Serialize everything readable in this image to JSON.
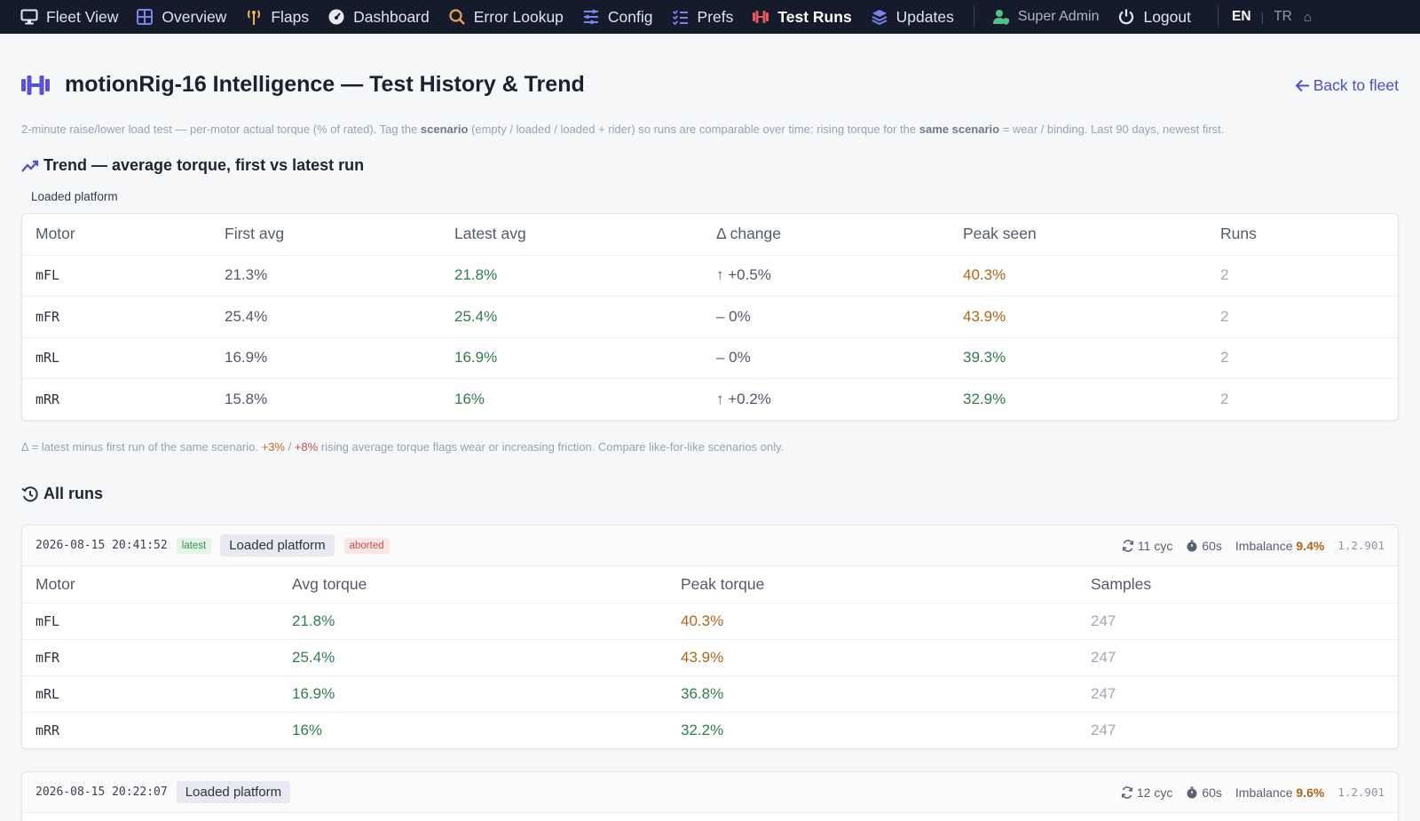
{
  "nav": {
    "brand": "Fleet View",
    "items": [
      {
        "label": "Overview",
        "icon": "grid-icon"
      },
      {
        "label": "Flaps",
        "icon": "antenna-icon"
      },
      {
        "label": "Dashboard",
        "icon": "gauge-icon"
      },
      {
        "label": "Error Lookup",
        "icon": "search-icon"
      },
      {
        "label": "Config",
        "icon": "sliders-icon"
      },
      {
        "label": "Prefs",
        "icon": "list-check-icon"
      },
      {
        "label": "Test Runs",
        "icon": "dumbbell-icon",
        "active": true
      },
      {
        "label": "Updates",
        "icon": "layers-icon"
      }
    ],
    "user": "Super Admin",
    "logout": "Logout",
    "lang_en": "EN",
    "lang_tr": "TR",
    "home": "⌂"
  },
  "header": {
    "title": "motionRig-16 Intelligence — Test History & Trend",
    "back": "Back to fleet",
    "desc_1": "2-minute raise/lower load test — per-motor actual torque (% of rated). Tag the ",
    "desc_b1": "scenario",
    "desc_2": " (empty / loaded / loaded + rider) so runs are comparable over time: rising torque for the ",
    "desc_b2": "same scenario",
    "desc_3": " = wear / binding. Last 90 days, newest first."
  },
  "trend": {
    "title": "Trend — average torque, first vs latest run",
    "scenario": "Loaded platform",
    "columns": [
      "Motor",
      "First avg",
      "Latest avg",
      "Δ change",
      "Peak seen",
      "Runs"
    ],
    "rows": [
      {
        "motor": "mFL",
        "first": "21.3%",
        "latest": "21.8%",
        "change": "↑ +0.5%",
        "peak": "40.3%",
        "peak_warn": true,
        "runs": "2"
      },
      {
        "motor": "mFR",
        "first": "25.4%",
        "latest": "25.4%",
        "change": "– 0%",
        "peak": "43.9%",
        "peak_warn": true,
        "runs": "2"
      },
      {
        "motor": "mRL",
        "first": "16.9%",
        "latest": "16.9%",
        "change": "– 0%",
        "peak": "39.3%",
        "peak_warn": false,
        "runs": "2"
      },
      {
        "motor": "mRR",
        "first": "15.8%",
        "latest": "16%",
        "change": "↑ +0.2%",
        "peak": "32.9%",
        "peak_warn": false,
        "runs": "2"
      }
    ],
    "note_1": "Δ = latest minus first run of the same scenario. ",
    "note_o": "+3%",
    "note_sep": " / ",
    "note_r": "+8%",
    "note_2": " rising average torque flags wear or increasing friction. Compare like-for-like scenarios only."
  },
  "runs": {
    "title": "All runs",
    "columns": [
      "Motor",
      "Avg torque",
      "Peak torque",
      "Samples"
    ],
    "list": [
      {
        "timestamp": "2026-08-15 20:41:52",
        "latest": "latest",
        "scenario": "Loaded platform",
        "aborted": "aborted",
        "cycles": "11 cyc",
        "duration": "60s",
        "imbalance_label": "Imbalance",
        "imbalance": "9.4%",
        "version": "1.2.901",
        "rows": [
          {
            "motor": "mFL",
            "avg": "21.8%",
            "peak": "40.3%",
            "peak_warn": true,
            "samples": "247"
          },
          {
            "motor": "mFR",
            "avg": "25.4%",
            "peak": "43.9%",
            "peak_warn": true,
            "samples": "247"
          },
          {
            "motor": "mRL",
            "avg": "16.9%",
            "peak": "36.8%",
            "peak_warn": false,
            "samples": "247"
          },
          {
            "motor": "mRR",
            "avg": "16%",
            "peak": "32.2%",
            "peak_warn": false,
            "samples": "247"
          }
        ]
      },
      {
        "timestamp": "2026-08-15 20:22:07",
        "scenario": "Loaded platform",
        "cycles": "12 cyc",
        "duration": "60s",
        "imbalance_label": "Imbalance",
        "imbalance": "9.6%",
        "version": "1.2.901"
      }
    ]
  }
}
